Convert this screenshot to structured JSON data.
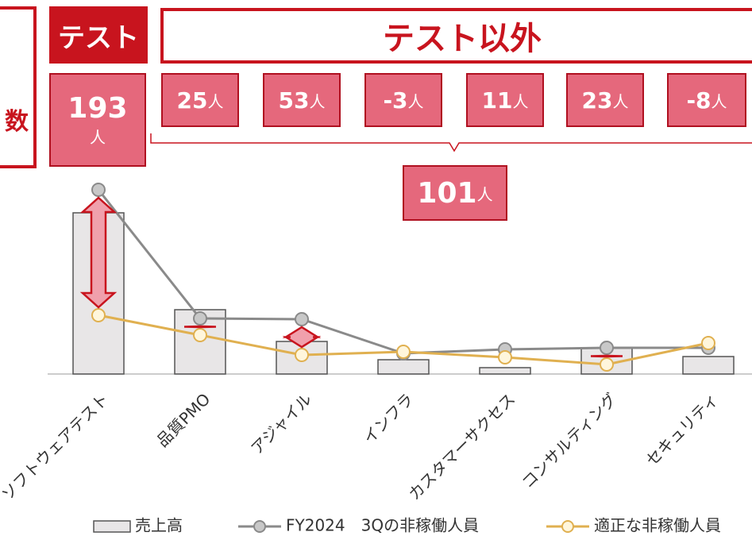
{
  "header": {
    "test": "テスト",
    "other": "テスト以外",
    "left_label": "数"
  },
  "deltas": [
    {
      "value": 193,
      "unit": "人"
    },
    {
      "value": 25,
      "unit": "人"
    },
    {
      "value": 53,
      "unit": "人"
    },
    {
      "value": -3,
      "unit": "人"
    },
    {
      "value": 11,
      "unit": "人"
    },
    {
      "value": 23,
      "unit": "人"
    },
    {
      "value": -8,
      "unit": "人"
    }
  ],
  "total": {
    "value": 101,
    "unit": "人"
  },
  "chart_data": {
    "type": "bar",
    "categories": [
      "ソフトウェアテスト",
      "品質PMO",
      "アジャイル",
      "インフラ",
      "カスタマーサクセス",
      "コンサルティング",
      "セキュリティ"
    ],
    "ylim": [
      0,
      240
    ],
    "series": [
      {
        "name": "売上高",
        "type": "bar",
        "color": "#e8e6e7",
        "values": [
          203,
          81,
          41,
          18,
          8,
          33,
          22
        ]
      },
      {
        "name": "FY2024　3Qの非稼働人員",
        "type": "line",
        "color": "#8a8a8a",
        "values": [
          232,
          70,
          69,
          26,
          31,
          33,
          33
        ]
      },
      {
        "name": "適正な非稼働人員",
        "type": "line",
        "color": "#e0b050",
        "values": [
          74,
          49,
          24,
          28,
          21,
          12,
          39
        ]
      }
    ]
  }
}
